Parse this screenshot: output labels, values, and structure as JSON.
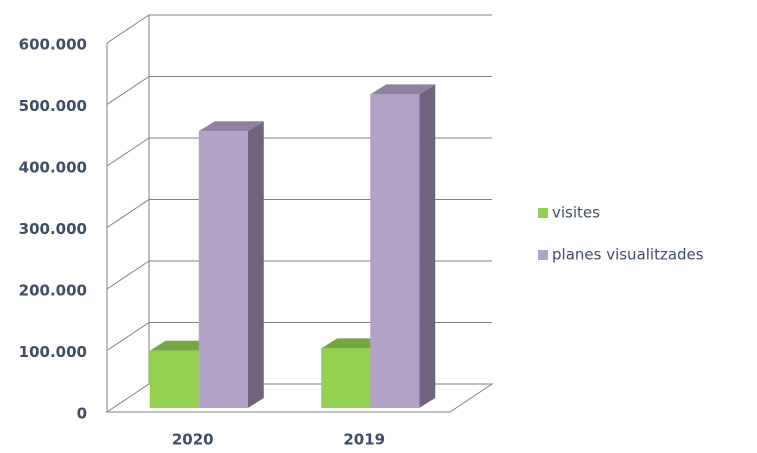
{
  "chart_data": {
    "type": "bar3d",
    "categories": [
      "2020",
      "2019"
    ],
    "series": [
      {
        "name": "visites",
        "color": "#92d050",
        "values": [
          93000,
          97000
        ]
      },
      {
        "name": "planes visualitzades",
        "color": "#b3a2c7",
        "values": [
          450000,
          510000
        ]
      }
    ],
    "ylim": [
      0,
      600000
    ],
    "yticks": [
      0,
      {
        "value": 100000,
        "label": "100.000"
      },
      {
        "value": 200000,
        "label": "200.000"
      },
      {
        "value": 300000,
        "label": "300.000"
      },
      {
        "value": 400000,
        "label": "400.000"
      },
      {
        "value": 500000,
        "label": "500.000"
      },
      {
        "value": 600000,
        "label": "600.000"
      }
    ],
    "grid": true,
    "legend": "right"
  }
}
